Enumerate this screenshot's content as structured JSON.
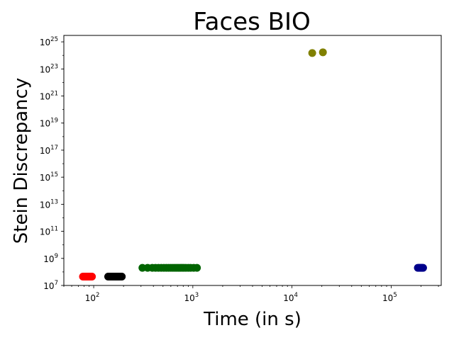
{
  "chart_data": {
    "type": "scatter",
    "title": "Faces BIO",
    "xlabel": "Time (in s)",
    "ylabel": "Stein Discrepancy",
    "xscale": "log",
    "yscale": "log",
    "xlim": [
      50,
      320000
    ],
    "ylim": [
      10000000.0,
      3e+25
    ],
    "grid": false,
    "x_ticks": [
      {
        "value": 100,
        "base": "10",
        "exp": "2"
      },
      {
        "value": 1000,
        "base": "10",
        "exp": "3"
      },
      {
        "value": 10000,
        "base": "10",
        "exp": "4"
      },
      {
        "value": 100000,
        "base": "10",
        "exp": "5"
      }
    ],
    "y_ticks": [
      {
        "value": 10000000.0,
        "base": "10",
        "exp": "7"
      },
      {
        "value": 1000000000.0,
        "base": "10",
        "exp": "9"
      },
      {
        "value": 100000000000.0,
        "base": "10",
        "exp": "11"
      },
      {
        "value": 10000000000000.0,
        "base": "10",
        "exp": "13"
      },
      {
        "value": 1000000000000000.0,
        "base": "10",
        "exp": "15"
      },
      {
        "value": 1e+17,
        "base": "10",
        "exp": "17"
      },
      {
        "value": 1e+19,
        "base": "10",
        "exp": "19"
      },
      {
        "value": 1e+21,
        "base": "10",
        "exp": "21"
      },
      {
        "value": 1e+23,
        "base": "10",
        "exp": "23"
      },
      {
        "value": 1e+25,
        "base": "10",
        "exp": "25"
      }
    ],
    "series": [
      {
        "color": "#ff0000",
        "points": [
          [
            78,
            45000000.0
          ],
          [
            80,
            45000000.0
          ],
          [
            82,
            45000000.0
          ],
          [
            84,
            45000000.0
          ],
          [
            86,
            45000000.0
          ],
          [
            88,
            45000000.0
          ],
          [
            90,
            45000000.0
          ],
          [
            92,
            45000000.0
          ],
          [
            94,
            45000000.0
          ],
          [
            96,
            45000000.0
          ]
        ]
      },
      {
        "color": "#000000",
        "points": [
          [
            140,
            45000000.0
          ],
          [
            145,
            45000000.0
          ],
          [
            150,
            45000000.0
          ],
          [
            155,
            45000000.0
          ],
          [
            160,
            45000000.0
          ],
          [
            165,
            45000000.0
          ],
          [
            170,
            45000000.0
          ],
          [
            175,
            45000000.0
          ],
          [
            180,
            45000000.0
          ],
          [
            186,
            45000000.0
          ],
          [
            192,
            45000000.0
          ]
        ]
      },
      {
        "color": "#006400",
        "points": [
          [
            310,
            200000000.0
          ],
          [
            350,
            200000000.0
          ],
          [
            390,
            200000000.0
          ],
          [
            420,
            200000000.0
          ],
          [
            450,
            200000000.0
          ],
          [
            480,
            200000000.0
          ],
          [
            510,
            200000000.0
          ],
          [
            540,
            200000000.0
          ],
          [
            570,
            200000000.0
          ],
          [
            600,
            200000000.0
          ],
          [
            630,
            200000000.0
          ],
          [
            660,
            200000000.0
          ],
          [
            690,
            200000000.0
          ],
          [
            720,
            200000000.0
          ],
          [
            750,
            200000000.0
          ],
          [
            780,
            200000000.0
          ],
          [
            810,
            200000000.0
          ],
          [
            850,
            200000000.0
          ],
          [
            900,
            200000000.0
          ],
          [
            950,
            200000000.0
          ],
          [
            1020,
            200000000.0
          ],
          [
            1100,
            200000000.0
          ]
        ]
      },
      {
        "color": "#808000",
        "points": [
          [
            16000,
            1.5e+24
          ],
          [
            20500,
            1.7e+24
          ]
        ]
      },
      {
        "color": "#00008b",
        "points": [
          [
            186000,
            200000000.0
          ],
          [
            190000,
            200000000.0
          ],
          [
            194000,
            200000000.0
          ],
          [
            198000,
            200000000.0
          ],
          [
            202000,
            200000000.0
          ],
          [
            206000,
            200000000.0
          ],
          [
            210000,
            200000000.0
          ]
        ]
      }
    ]
  }
}
